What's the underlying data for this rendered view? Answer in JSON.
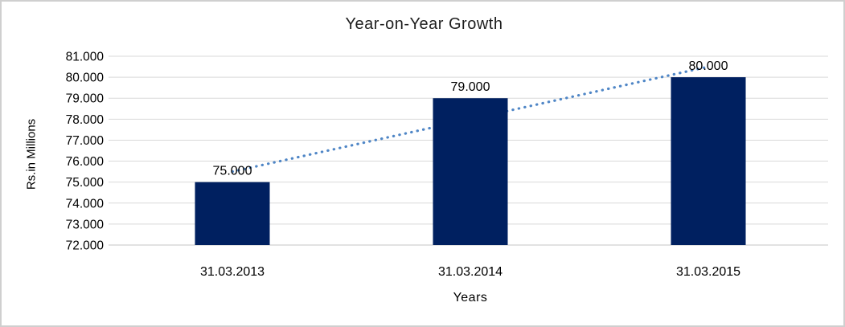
{
  "chart_data": {
    "type": "bar",
    "title": "Year-on-Year Growth",
    "xlabel": "Years",
    "ylabel": "Rs.in Millions",
    "categories": [
      "31.03.2013",
      "31.03.2014",
      "31.03.2015"
    ],
    "values": [
      75000,
      79000,
      80000
    ],
    "data_labels": [
      "75.000",
      "79.000",
      "80.000"
    ],
    "ylim": [
      72000,
      81000
    ],
    "ytick_step": 1000,
    "ytick_labels": [
      "72.000",
      "73.000",
      "74.000",
      "75.000",
      "76.000",
      "77.000",
      "78.000",
      "79.000",
      "80.000",
      "81.000"
    ],
    "grid": true,
    "legend": "none",
    "bar_color": "#002060",
    "gridline_color": "#D9D9D9",
    "axis_line_color": "#C6C6C6",
    "text_color": "#000000",
    "trendline": {
      "type": "linear",
      "style": "dotted",
      "color": "#4F86C6",
      "start_value": 75500,
      "end_value": 80500
    }
  }
}
